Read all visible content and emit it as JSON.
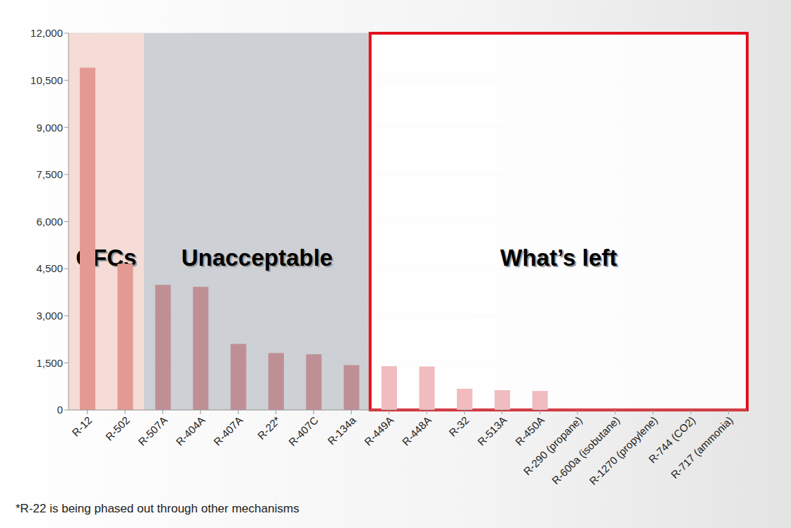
{
  "chart_data": {
    "type": "bar",
    "categories": [
      "R-12",
      "R-502",
      "R-507A",
      "R-404A",
      "R-407A",
      "R-22*",
      "R-407C",
      "R-134a",
      "R-449A",
      "R-448A",
      "R-32",
      "R-513A",
      "R-450A",
      "R-290 (propane)",
      "R-600a (isobutane)",
      "R-1270 (propylene)",
      "R-744 (CO2)",
      "R-717 (ammonia)"
    ],
    "values": [
      10900,
      4657,
      3985,
      3922,
      2107,
      1810,
      1774,
      1430,
      1397,
      1387,
      675,
      631,
      605,
      3,
      3,
      2,
      1,
      0
    ],
    "colors": [
      "#e39a92",
      "#e39a92",
      "#bf8f96",
      "#bf8f96",
      "#bf8f96",
      "#bf8f96",
      "#bf8f96",
      "#bf8f96",
      "#f0bcc0",
      "#f0bcc0",
      "#f0bcc0",
      "#f0bcc0",
      "#f0bcc0",
      "#f0bcc0",
      "#f0bcc0",
      "#f0bcc0",
      "#f0bcc0",
      "#f0bcc0"
    ],
    "ylim": [
      0,
      12000
    ],
    "yticks": [
      0,
      {
        "value": 1500,
        "label": "1,500"
      },
      {
        "value": 3000,
        "label": "3,000"
      },
      {
        "value": 4500,
        "label": "4,500"
      },
      {
        "value": 6000,
        "label": "6,000"
      },
      {
        "value": 7500,
        "label": "7,500"
      },
      {
        "value": 9000,
        "label": "9,000"
      },
      {
        "value": 10500,
        "label": "10,500"
      },
      {
        "value": 12000,
        "label": "12,000"
      }
    ],
    "grid": true,
    "annotations": [
      {
        "text": "CFCs",
        "from": "R-12",
        "to": "R-502",
        "color": "#f4d8d2"
      },
      {
        "text": "Unacceptable",
        "from": "R-507A",
        "to": "R-134a",
        "color": "#c8cbd0"
      },
      {
        "text": "What’s left",
        "from": "R-449A",
        "to": "R-717 (ammonia)",
        "color": "#e3101c"
      }
    ],
    "footnote": "*R-22 is being phased out through other mechanisms"
  }
}
